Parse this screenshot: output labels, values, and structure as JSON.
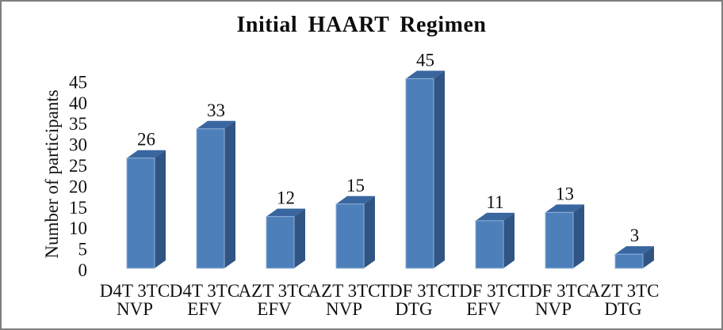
{
  "window": {
    "background": "#ffffff",
    "border_color": "#7f7f7f"
  },
  "chart_data": {
    "type": "bar",
    "style": "3d-column",
    "title": "Initial HAART Regimen",
    "xlabel": "",
    "ylabel": "Number of participants",
    "categories": [
      "D4T 3TC NVP",
      "D4T 3TC EFV",
      "AZT 3TC EFV",
      "AZT 3TC NVP",
      "TDF 3TC DTG",
      "TDF 3TC EFV",
      "TDF 3TC NVP",
      "AZT 3TC DTG"
    ],
    "category_lines": [
      [
        "D4T 3TC",
        "NVP"
      ],
      [
        "D4T 3TC",
        "EFV"
      ],
      [
        "AZT 3TC",
        "EFV"
      ],
      [
        "AZT 3TC",
        "NVP"
      ],
      [
        "TDF 3TC",
        "DTG"
      ],
      [
        "TDF 3TC",
        "EFV"
      ],
      [
        "TDF 3TC",
        "NVP"
      ],
      [
        "AZT 3TC",
        "DTG"
      ]
    ],
    "values": [
      26,
      33,
      12,
      15,
      45,
      11,
      13,
      3
    ],
    "data_labels": true,
    "yticks": [
      0,
      5,
      10,
      15,
      20,
      25,
      30,
      35,
      40,
      45
    ],
    "ylim": [
      0,
      45
    ],
    "ytick_step": 5,
    "grid": false,
    "legend": false,
    "colors": {
      "bar_front": "#4d7fba",
      "bar_top": "#3a66a0",
      "bar_side": "#305584",
      "bar_edge_highlight": "#93b2d8",
      "text": "#111111"
    }
  }
}
